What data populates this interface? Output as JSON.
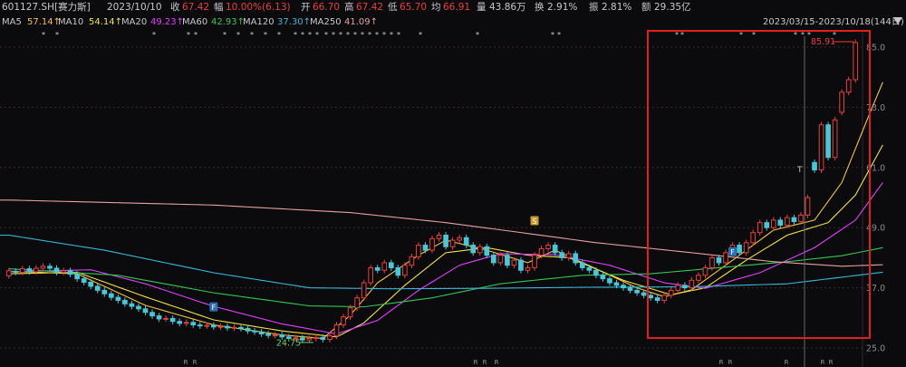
{
  "header": {
    "code": "601127.SH[赛力斯]",
    "date": "2023/10/10",
    "close_label": "收",
    "close": "67.42",
    "change_label": "幅",
    "change": "10.00%(6.13)",
    "open_label": "开",
    "open": "66.70",
    "high_label": "高",
    "high": "67.42",
    "low_label": "低",
    "low": "65.70",
    "avg_label": "均",
    "avg": "66.91",
    "volume_label": "量",
    "volume": "43.86万",
    "turnover_label": "换",
    "turnover": "2.91%",
    "amplitude_label": "振",
    "amplitude": "2.81%",
    "amount_label": "额",
    "amount": "29.35亿",
    "range": "2023/03/15-2023/10/18(144日)"
  },
  "ma": [
    {
      "name": "MA5",
      "value": "57.14↑",
      "color": "#f5c242"
    },
    {
      "name": "MA10",
      "value": "54.14↑",
      "color": "#f0e04a"
    },
    {
      "name": "MA20",
      "value": "49.23↑",
      "color": "#e040fb"
    },
    {
      "name": "MA60",
      "value": "42.93↑",
      "color": "#32c850"
    },
    {
      "name": "MA120",
      "value": "37.30↑",
      "color": "#3ab7d6"
    },
    {
      "name": "MA250",
      "value": "41.09↑",
      "color": "#e8a0a0"
    }
  ],
  "colors": {
    "up": "#e8403a",
    "down": "#46c8d8",
    "grid": "#3c2a2a",
    "highlight": "#e02020"
  },
  "chart_data": {
    "type": "candlestick",
    "y_ticks": [
      85.0,
      73.0,
      61.0,
      49.0,
      37.0,
      25.0
    ],
    "y_tick_labels": [
      "85.0",
      "73.0",
      "61.0",
      "49.0",
      "37.0",
      "25.0"
    ],
    "ylim": [
      25,
      85
    ],
    "annotations": {
      "max_label": "85.91",
      "min_label": "24.75",
      "t_marker": "T",
      "f_marker": "F",
      "s_marker": "S"
    },
    "highlight_box": true,
    "candles": [
      {
        "o": 39.4,
        "c": 40.4
      },
      {
        "o": 40.3,
        "c": 40.1
      },
      {
        "o": 40.1,
        "c": 40.8
      },
      {
        "o": 40.8,
        "c": 40.2
      },
      {
        "o": 40.2,
        "c": 40.9
      },
      {
        "o": 40.9,
        "c": 41.3
      },
      {
        "o": 41.3,
        "c": 40.9
      },
      {
        "o": 40.9,
        "c": 40.1
      },
      {
        "o": 40.1,
        "c": 40.4
      },
      {
        "o": 40.4,
        "c": 39.7
      },
      {
        "o": 39.7,
        "c": 38.8
      },
      {
        "o": 38.8,
        "c": 38.1
      },
      {
        "o": 38.1,
        "c": 37.3
      },
      {
        "o": 37.3,
        "c": 36.5
      },
      {
        "o": 36.5,
        "c": 35.8
      },
      {
        "o": 35.8,
        "c": 35.1
      },
      {
        "o": 35.1,
        "c": 34.5
      },
      {
        "o": 34.5,
        "c": 33.8
      },
      {
        "o": 33.8,
        "c": 33.3
      },
      {
        "o": 33.3,
        "c": 32.8
      },
      {
        "o": 32.8,
        "c": 32.1
      },
      {
        "o": 32.1,
        "c": 31.4
      },
      {
        "o": 31.4,
        "c": 30.8
      },
      {
        "o": 30.8,
        "c": 30.9
      },
      {
        "o": 30.9,
        "c": 30.3
      },
      {
        "o": 30.3,
        "c": 29.9
      },
      {
        "o": 29.9,
        "c": 30.1
      },
      {
        "o": 30.1,
        "c": 29.6
      },
      {
        "o": 29.6,
        "c": 29.4
      },
      {
        "o": 29.4,
        "c": 29.5
      },
      {
        "o": 29.5,
        "c": 29.2
      },
      {
        "o": 29.2,
        "c": 29.3
      },
      {
        "o": 29.3,
        "c": 29.0
      },
      {
        "o": 29.0,
        "c": 29.1
      },
      {
        "o": 29.1,
        "c": 28.9
      },
      {
        "o": 28.9,
        "c": 28.4
      },
      {
        "o": 28.4,
        "c": 28.2
      },
      {
        "o": 28.2,
        "c": 27.8
      },
      {
        "o": 27.8,
        "c": 27.5
      },
      {
        "o": 27.5,
        "c": 27.6
      },
      {
        "o": 27.6,
        "c": 27.2
      },
      {
        "o": 27.2,
        "c": 26.9
      },
      {
        "o": 26.9,
        "c": 27.0
      },
      {
        "o": 27.0,
        "c": 26.6
      },
      {
        "o": 26.6,
        "c": 26.9
      },
      {
        "o": 26.9,
        "c": 27.1
      },
      {
        "o": 27.1,
        "c": 26.7
      },
      {
        "o": 26.7,
        "c": 27.4
      },
      {
        "o": 27.4,
        "c": 29.6
      },
      {
        "o": 29.6,
        "c": 31.2
      },
      {
        "o": 31.2,
        "c": 33.0
      },
      {
        "o": 33.0,
        "c": 35.0
      },
      {
        "o": 35.0,
        "c": 38.0
      },
      {
        "o": 38.0,
        "c": 41.0
      },
      {
        "o": 41.0,
        "c": 40.5
      },
      {
        "o": 40.5,
        "c": 42.0
      },
      {
        "o": 42.0,
        "c": 41.0
      },
      {
        "o": 41.0,
        "c": 39.5
      },
      {
        "o": 39.5,
        "c": 41.5
      },
      {
        "o": 41.5,
        "c": 43.2
      },
      {
        "o": 43.2,
        "c": 45.5
      },
      {
        "o": 45.5,
        "c": 44.5
      },
      {
        "o": 44.5,
        "c": 46.8
      },
      {
        "o": 46.8,
        "c": 47.5
      },
      {
        "o": 47.5,
        "c": 45.2
      },
      {
        "o": 45.2,
        "c": 46.5
      },
      {
        "o": 46.5,
        "c": 47.0
      },
      {
        "o": 47.0,
        "c": 45.5
      },
      {
        "o": 45.5,
        "c": 44.0
      },
      {
        "o": 44.0,
        "c": 45.2
      },
      {
        "o": 45.2,
        "c": 43.5
      },
      {
        "o": 43.5,
        "c": 42.0
      },
      {
        "o": 42.0,
        "c": 43.5
      },
      {
        "o": 43.5,
        "c": 41.5
      },
      {
        "o": 41.5,
        "c": 42.5
      },
      {
        "o": 42.5,
        "c": 40.5
      },
      {
        "o": 40.5,
        "c": 41.0
      },
      {
        "o": 41.0,
        "c": 43.5
      },
      {
        "o": 43.5,
        "c": 44.8
      },
      {
        "o": 44.8,
        "c": 45.5
      },
      {
        "o": 45.5,
        "c": 44.0
      },
      {
        "o": 44.0,
        "c": 43.0
      },
      {
        "o": 43.0,
        "c": 43.8
      },
      {
        "o": 43.8,
        "c": 42.0
      },
      {
        "o": 42.0,
        "c": 41.0
      },
      {
        "o": 41.0,
        "c": 40.5
      },
      {
        "o": 40.5,
        "c": 39.5
      },
      {
        "o": 39.5,
        "c": 38.8
      },
      {
        "o": 38.8,
        "c": 38.0
      },
      {
        "o": 38.0,
        "c": 37.5
      },
      {
        "o": 37.5,
        "c": 37.0
      },
      {
        "o": 37.0,
        "c": 36.5
      },
      {
        "o": 36.5,
        "c": 36.0
      },
      {
        "o": 36.0,
        "c": 35.5
      },
      {
        "o": 35.5,
        "c": 35.0
      },
      {
        "o": 35.0,
        "c": 34.5
      },
      {
        "o": 34.5,
        "c": 35.5
      },
      {
        "o": 35.5,
        "c": 36.5
      },
      {
        "o": 36.5,
        "c": 37.5
      },
      {
        "o": 37.5,
        "c": 37.0
      },
      {
        "o": 37.0,
        "c": 38.5
      },
      {
        "o": 38.5,
        "c": 39.5
      },
      {
        "o": 39.5,
        "c": 41.0
      },
      {
        "o": 41.0,
        "c": 43.0
      },
      {
        "o": 43.0,
        "c": 42.0
      },
      {
        "o": 42.0,
        "c": 44.0
      },
      {
        "o": 44.0,
        "c": 45.5
      },
      {
        "o": 45.5,
        "c": 44.0
      },
      {
        "o": 44.0,
        "c": 46.0
      },
      {
        "o": 46.0,
        "c": 48.0
      },
      {
        "o": 48.0,
        "c": 50.0
      },
      {
        "o": 50.0,
        "c": 49.0
      },
      {
        "o": 49.0,
        "c": 50.5
      },
      {
        "o": 50.5,
        "c": 49.5
      },
      {
        "o": 49.5,
        "c": 51.0
      },
      {
        "o": 51.0,
        "c": 50.2
      },
      {
        "o": 50.2,
        "c": 51.5
      },
      {
        "o": 51.5,
        "c": 55.0
      },
      {
        "o": 62.0,
        "c": 60.5
      },
      {
        "o": 60.5,
        "c": 69.5
      },
      {
        "o": 69.5,
        "c": 63.0
      },
      {
        "o": 63.0,
        "c": 70.5
      },
      {
        "o": 72.0,
        "c": 76.0
      },
      {
        "o": 76.0,
        "c": 78.5
      },
      {
        "o": 78.5,
        "c": 85.9
      }
    ],
    "ma_series": {
      "MA5": {
        "color": "#f5c242",
        "anchors": [
          [
            0,
            40.3
          ],
          [
            10,
            39.8
          ],
          [
            20,
            33.5
          ],
          [
            30,
            29.6
          ],
          [
            40,
            27.6
          ],
          [
            46,
            26.9
          ],
          [
            50,
            31.5
          ],
          [
            54,
            38.0
          ],
          [
            60,
            43.5
          ],
          [
            64,
            46.5
          ],
          [
            70,
            44.5
          ],
          [
            76,
            42.0
          ],
          [
            80,
            44.5
          ],
          [
            86,
            40.8
          ],
          [
            92,
            37.0
          ],
          [
            96,
            35.2
          ],
          [
            100,
            36.6
          ],
          [
            106,
            42.5
          ],
          [
            112,
            48.5
          ],
          [
            118,
            50.5
          ],
          [
            122,
            58.0
          ],
          [
            126,
            71.5
          ],
          [
            128,
            78.0
          ]
        ]
      },
      "MA10": {
        "color": "#f0e04a",
        "anchors": [
          [
            0,
            39.8
          ],
          [
            10,
            40.1
          ],
          [
            20,
            35.2
          ],
          [
            30,
            30.6
          ],
          [
            40,
            28.4
          ],
          [
            48,
            27.2
          ],
          [
            52,
            30.0
          ],
          [
            58,
            37.5
          ],
          [
            64,
            44.0
          ],
          [
            70,
            45.0
          ],
          [
            76,
            43.5
          ],
          [
            82,
            43.0
          ],
          [
            90,
            38.5
          ],
          [
            97,
            35.6
          ],
          [
            102,
            37.0
          ],
          [
            108,
            42.5
          ],
          [
            114,
            47.5
          ],
          [
            120,
            50.0
          ],
          [
            124,
            55.5
          ],
          [
            128,
            65.5
          ]
        ]
      },
      "MA20": {
        "color": "#e040fb",
        "anchors": [
          [
            0,
            40.2
          ],
          [
            12,
            40.6
          ],
          [
            20,
            37.8
          ],
          [
            30,
            33.3
          ],
          [
            40,
            29.8
          ],
          [
            48,
            27.8
          ],
          [
            54,
            30.5
          ],
          [
            60,
            36.5
          ],
          [
            66,
            41.5
          ],
          [
            72,
            43.8
          ],
          [
            80,
            43.6
          ],
          [
            88,
            41.5
          ],
          [
            96,
            38.0
          ],
          [
            102,
            36.9
          ],
          [
            110,
            40.0
          ],
          [
            118,
            45.0
          ],
          [
            124,
            50.5
          ],
          [
            128,
            58.0
          ]
        ]
      },
      "MA60": {
        "color": "#32c850",
        "anchors": [
          [
            0,
            40.8
          ],
          [
            16,
            39.5
          ],
          [
            30,
            36.0
          ],
          [
            44,
            33.4
          ],
          [
            52,
            33.2
          ],
          [
            62,
            35.0
          ],
          [
            72,
            37.8
          ],
          [
            84,
            39.5
          ],
          [
            94,
            39.8
          ],
          [
            104,
            41.0
          ],
          [
            114,
            42.2
          ],
          [
            122,
            43.4
          ],
          [
            128,
            45.0
          ]
        ]
      },
      "MA120": {
        "color": "#3ab7d6",
        "anchors": [
          [
            0,
            47.5
          ],
          [
            14,
            44.5
          ],
          [
            30,
            40.0
          ],
          [
            44,
            37.0
          ],
          [
            56,
            36.8
          ],
          [
            70,
            36.9
          ],
          [
            84,
            37.1
          ],
          [
            100,
            37.2
          ],
          [
            114,
            37.8
          ],
          [
            128,
            40.1
          ]
        ]
      },
      "MA250": {
        "color": "#e8a0a0",
        "anchors": [
          [
            0,
            54.5
          ],
          [
            30,
            53.5
          ],
          [
            50,
            52.0
          ],
          [
            64,
            50.0
          ],
          [
            74,
            48.2
          ],
          [
            86,
            46.0
          ],
          [
            100,
            44.0
          ],
          [
            112,
            42.2
          ],
          [
            122,
            41.3
          ],
          [
            128,
            41.6
          ]
        ]
      }
    }
  }
}
